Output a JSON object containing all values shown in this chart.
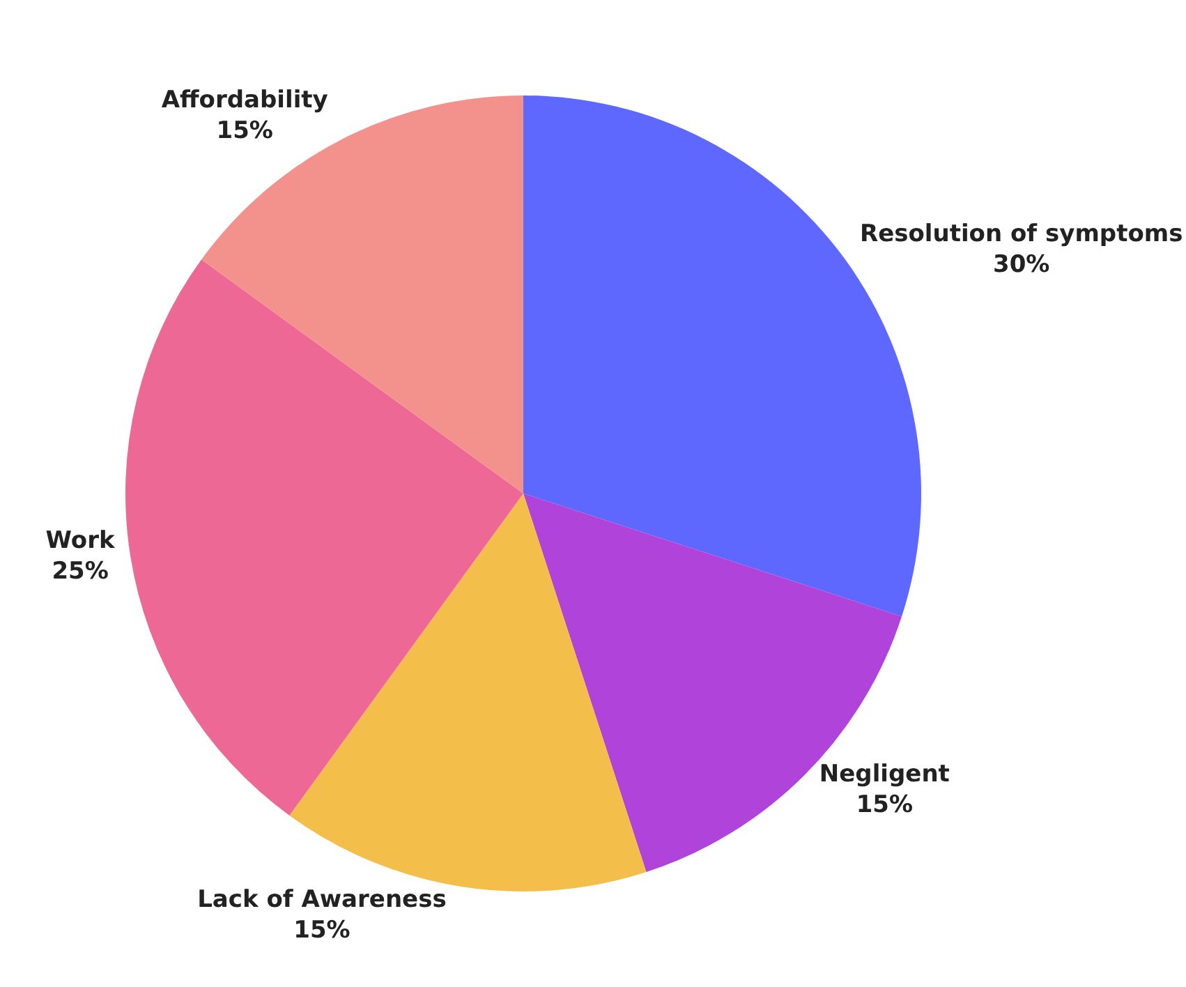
{
  "chart_data": {
    "type": "pie",
    "categories": [
      "Resolution of symptoms",
      "Negligent",
      "Lack of Awareness",
      "Work",
      "Affordability"
    ],
    "values": [
      30,
      15,
      15,
      25,
      15
    ],
    "value_labels": [
      "30%",
      "15%",
      "15%",
      "25%",
      "15%"
    ],
    "colors": [
      "#5f68fe",
      "#b043d9",
      "#f4be4b",
      "#ee6896",
      "#f3928d"
    ],
    "legend": false
  }
}
